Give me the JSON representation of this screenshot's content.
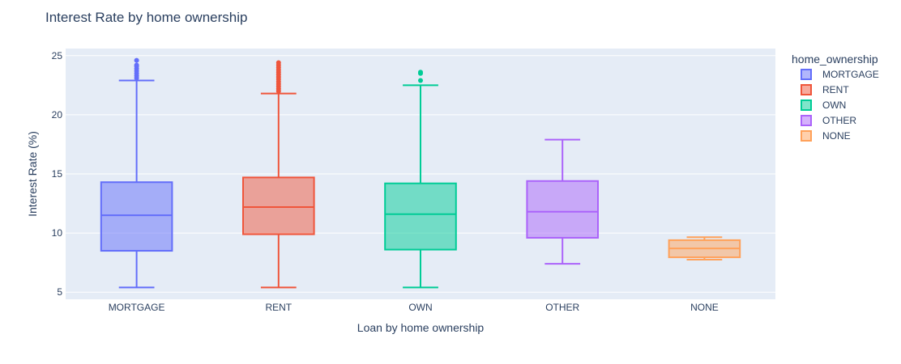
{
  "chart_data": {
    "type": "box",
    "title": "Interest Rate by home ownership",
    "xlabel": "Loan by home ownership",
    "ylabel": "Interest Rate (%)",
    "ylim": [
      4.4,
      25.6
    ],
    "yticks": [
      5,
      10,
      15,
      20,
      25
    ],
    "grid": true,
    "legend": {
      "title": "home_ownership",
      "placement": "right"
    },
    "categories": [
      "MORTGAGE",
      "RENT",
      "OWN",
      "OTHER",
      "NONE"
    ],
    "series": [
      {
        "name": "MORTGAGE",
        "color": "#636efa",
        "min": 5.4,
        "q1": 8.5,
        "median": 11.5,
        "q3": 14.3,
        "max": 22.9,
        "outliers": [
          23.1,
          23.3,
          23.5,
          23.7,
          23.9,
          24.1,
          24.2,
          24.6
        ]
      },
      {
        "name": "RENT",
        "color": "#ef553b",
        "min": 5.4,
        "q1": 9.9,
        "median": 12.2,
        "q3": 14.7,
        "max": 21.8,
        "outliers": [
          22.0,
          22.2,
          22.4,
          22.6,
          22.8,
          23.0,
          23.2,
          23.4,
          23.6,
          23.8,
          24.0,
          24.2,
          24.4
        ]
      },
      {
        "name": "OWN",
        "color": "#00cc96",
        "min": 5.4,
        "q1": 8.6,
        "median": 11.6,
        "q3": 14.2,
        "max": 22.5,
        "outliers": [
          22.9,
          23.5,
          23.6
        ]
      },
      {
        "name": "OTHER",
        "color": "#ab63fa",
        "min": 7.4,
        "q1": 9.6,
        "median": 11.8,
        "q3": 14.4,
        "max": 17.9,
        "outliers": []
      },
      {
        "name": "NONE",
        "color": "#ffa15a",
        "min": 7.75,
        "q1": 7.95,
        "median": 8.7,
        "q3": 9.4,
        "max": 9.65,
        "outliers": []
      }
    ]
  }
}
